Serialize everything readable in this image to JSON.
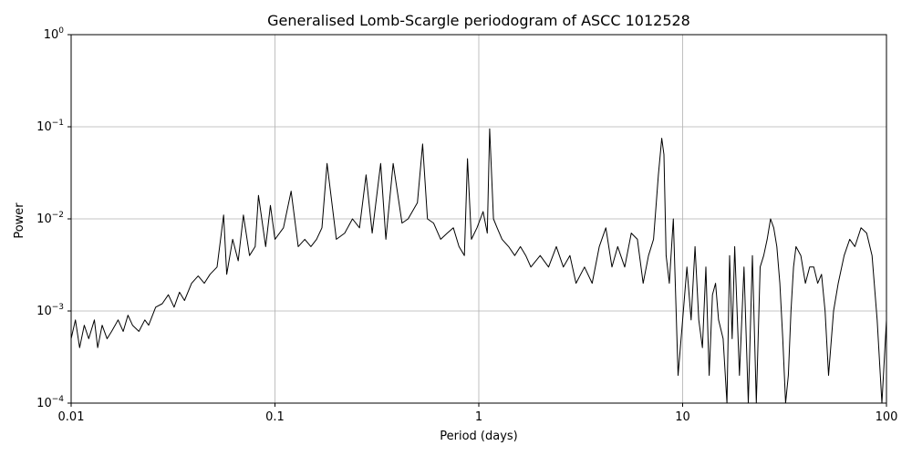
{
  "chart_data": {
    "type": "line",
    "title": "Generalised Lomb-Scargle periodogram of ASCC 1012528",
    "xlabel": "Period (days)",
    "ylabel": "Power",
    "xscale": "log",
    "yscale": "log",
    "xlim": [
      0.01,
      100
    ],
    "ylim": [
      0.0001,
      1
    ],
    "grid": true,
    "line_color": "#000000",
    "x_ticks": [
      {
        "value": 0.01,
        "label": "0.01"
      },
      {
        "value": 0.1,
        "label": "0.1"
      },
      {
        "value": 1,
        "label": "1"
      },
      {
        "value": 10,
        "label": "10"
      },
      {
        "value": 100,
        "label": "100"
      }
    ],
    "y_ticks": [
      {
        "value": 0.0001,
        "base": "10",
        "exp": "−4"
      },
      {
        "value": 0.001,
        "base": "10",
        "exp": "−3"
      },
      {
        "value": 0.01,
        "base": "10",
        "exp": "−2"
      },
      {
        "value": 0.1,
        "base": "10",
        "exp": "−1"
      },
      {
        "value": 1,
        "base": "10",
        "exp": "0"
      }
    ],
    "series": [
      {
        "x": [
          0.01,
          0.0105,
          0.011,
          0.0116,
          0.0122,
          0.013,
          0.0135,
          0.0142,
          0.015,
          0.0158,
          0.017,
          0.018,
          0.019,
          0.02,
          0.0215,
          0.023,
          0.024,
          0.026,
          0.028,
          0.03,
          0.032,
          0.034,
          0.036,
          0.039,
          0.042,
          0.045,
          0.048,
          0.052,
          0.056,
          0.058,
          0.062,
          0.066,
          0.07,
          0.075,
          0.08,
          0.083,
          0.09,
          0.095,
          0.1,
          0.11,
          0.12,
          0.13,
          0.14,
          0.15,
          0.16,
          0.17,
          0.18,
          0.2,
          0.22,
          0.24,
          0.26,
          0.28,
          0.3,
          0.33,
          0.35,
          0.38,
          0.42,
          0.45,
          0.5,
          0.53,
          0.56,
          0.6,
          0.65,
          0.7,
          0.75,
          0.8,
          0.85,
          0.88,
          0.92,
          0.98,
          1.05,
          1.1,
          1.13,
          1.18,
          1.23,
          1.3,
          1.4,
          1.5,
          1.6,
          1.7,
          1.8,
          2.0,
          2.2,
          2.4,
          2.6,
          2.8,
          3.0,
          3.3,
          3.6,
          3.9,
          4.2,
          4.5,
          4.8,
          5.2,
          5.6,
          6.0,
          6.4,
          6.8,
          7.2,
          7.6,
          7.9,
          8.1,
          8.3,
          8.6,
          9.0,
          9.5,
          10.0,
          10.5,
          11.0,
          11.5,
          12.0,
          12.5,
          13.0,
          13.5,
          14.0,
          14.5,
          15.0,
          15.8,
          16.5,
          17.0,
          17.5,
          18.0,
          19.0,
          20.0,
          21.0,
          22.0,
          23.0,
          24.0,
          25.0,
          26.0,
          27.0,
          28.0,
          29.0,
          30.0,
          31.0,
          32.0,
          33.0,
          34.0,
          35.0,
          36.0,
          38.0,
          40.0,
          42.0,
          44.0,
          46.0,
          48.0,
          50.0,
          52.0,
          55.0,
          58.0,
          62.0,
          66.0,
          70.0,
          75.0,
          80.0,
          85.0,
          90.0,
          95.0,
          100.0
        ],
        "y": [
          0.0005,
          0.0008,
          0.0004,
          0.0007,
          0.0005,
          0.0008,
          0.0004,
          0.0007,
          0.0005,
          0.0006,
          0.0008,
          0.0006,
          0.0009,
          0.0007,
          0.0006,
          0.0008,
          0.0007,
          0.0011,
          0.0012,
          0.0015,
          0.0011,
          0.0016,
          0.0013,
          0.002,
          0.0024,
          0.002,
          0.0025,
          0.003,
          0.011,
          0.0025,
          0.006,
          0.0035,
          0.011,
          0.004,
          0.005,
          0.018,
          0.005,
          0.014,
          0.006,
          0.008,
          0.02,
          0.005,
          0.006,
          0.005,
          0.006,
          0.008,
          0.04,
          0.006,
          0.007,
          0.01,
          0.008,
          0.03,
          0.007,
          0.04,
          0.006,
          0.04,
          0.009,
          0.01,
          0.015,
          0.065,
          0.01,
          0.009,
          0.006,
          0.007,
          0.008,
          0.005,
          0.004,
          0.045,
          0.006,
          0.008,
          0.012,
          0.007,
          0.095,
          0.01,
          0.008,
          0.006,
          0.005,
          0.004,
          0.005,
          0.004,
          0.003,
          0.004,
          0.003,
          0.005,
          0.003,
          0.004,
          0.002,
          0.003,
          0.002,
          0.005,
          0.008,
          0.003,
          0.005,
          0.003,
          0.007,
          0.006,
          0.002,
          0.004,
          0.006,
          0.03,
          0.075,
          0.05,
          0.004,
          0.002,
          0.01,
          0.0002,
          0.0008,
          0.003,
          0.0008,
          0.005,
          0.0008,
          0.0004,
          0.003,
          0.0002,
          0.0015,
          0.002,
          0.0008,
          0.0005,
          0.0001,
          0.004,
          0.0005,
          0.005,
          0.0002,
          0.003,
          0.0001,
          0.004,
          0.0001,
          0.003,
          0.004,
          0.006,
          0.01,
          0.008,
          0.005,
          0.002,
          0.0005,
          0.0001,
          0.0002,
          0.001,
          0.003,
          0.005,
          0.004,
          0.002,
          0.003,
          0.003,
          0.002,
          0.0025,
          0.001,
          0.0002,
          0.001,
          0.002,
          0.004,
          0.006,
          0.005,
          0.008,
          0.007,
          0.004,
          0.0008,
          0.0001,
          0.0008
        ]
      }
    ]
  }
}
